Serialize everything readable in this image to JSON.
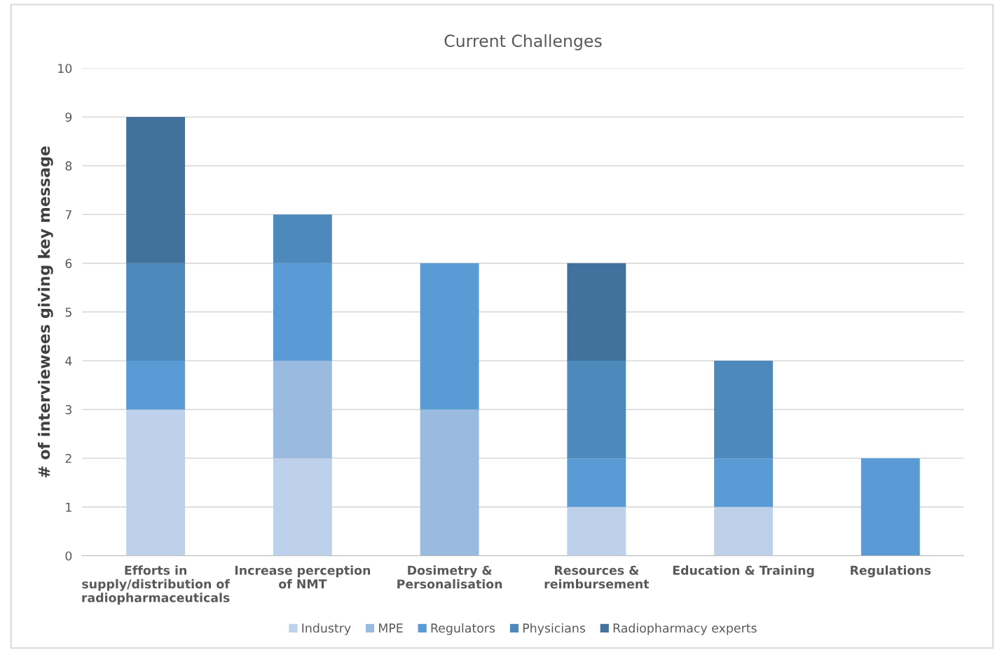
{
  "chart_data": {
    "type": "bar",
    "stacked": true,
    "title": "Current Challenges",
    "ylabel": "# of interviewees giving key message",
    "categories": [
      "Efforts in\nsupply/distribution of\nradiopharmaceuticals",
      "Increase perception\nof NMT",
      "Dosimetry &\nPersonalisation",
      "Resources &\nreimbursement",
      "Education & Training",
      "Regulations"
    ],
    "series": [
      {
        "name": "Industry",
        "color": "#bdd1ea",
        "values": [
          3,
          2,
          0,
          1,
          1,
          0
        ]
      },
      {
        "name": "MPE",
        "color": "#9abadf",
        "values": [
          0,
          2,
          3,
          0,
          0,
          0
        ]
      },
      {
        "name": "Regulators",
        "color": "#5b9bd5",
        "values": [
          1,
          2,
          3,
          1,
          1,
          2
        ]
      },
      {
        "name": "Physicians",
        "color": "#4e89bc",
        "values": [
          2,
          1,
          0,
          2,
          2,
          0
        ]
      },
      {
        "name": "Radiopharmacy experts",
        "color": "#41719c",
        "values": [
          3,
          0,
          0,
          2,
          0,
          0
        ]
      }
    ],
    "ylim": [
      0,
      10
    ],
    "yticks": [
      0,
      1,
      2,
      3,
      4,
      5,
      6,
      7,
      8,
      9,
      10
    ],
    "grid": "y",
    "legend": "bottom"
  }
}
